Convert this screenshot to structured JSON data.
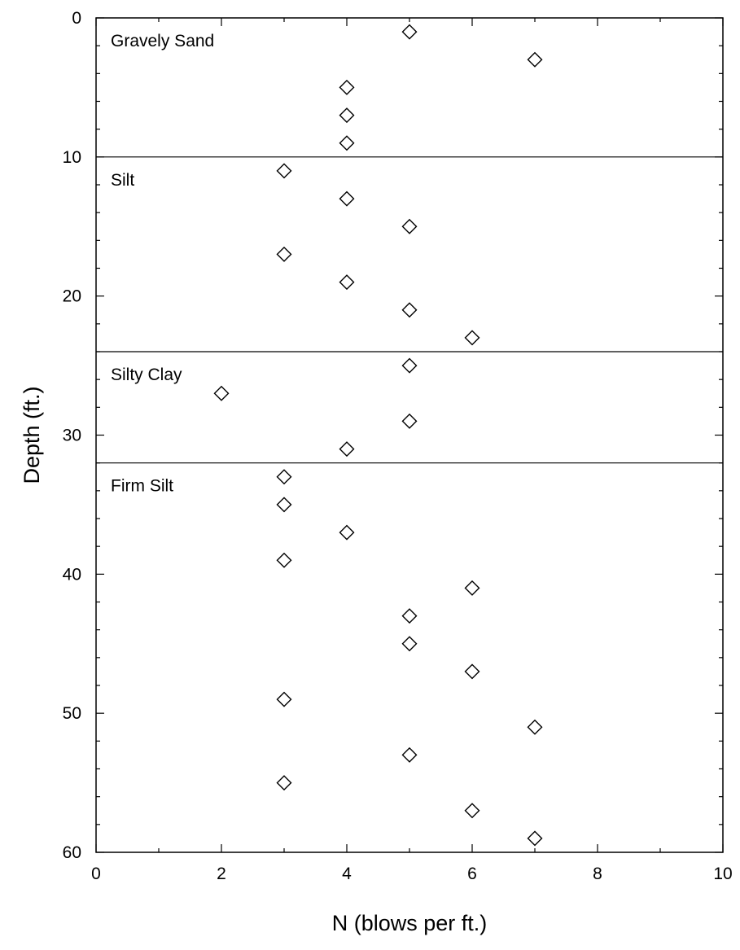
{
  "chart_data": {
    "type": "scatter",
    "title": "",
    "xlabel": "N (blows per ft.)",
    "ylabel": "Depth (ft.)",
    "xlim": [
      0,
      10
    ],
    "ylim": [
      0,
      60
    ],
    "y_inverted": true,
    "grid": false,
    "x_ticks": [
      "0",
      "2",
      "4",
      "6",
      "8",
      "10"
    ],
    "y_ticks": [
      "0",
      "10",
      "20",
      "30",
      "40",
      "50",
      "60"
    ],
    "marker": "open-diamond",
    "series": [
      {
        "points": [
          {
            "x": 5,
            "y": 1
          },
          {
            "x": 7,
            "y": 3
          },
          {
            "x": 4,
            "y": 5
          },
          {
            "x": 4,
            "y": 7
          },
          {
            "x": 4,
            "y": 9
          },
          {
            "x": 3,
            "y": 11
          },
          {
            "x": 4,
            "y": 13
          },
          {
            "x": 5,
            "y": 15
          },
          {
            "x": 3,
            "y": 17
          },
          {
            "x": 4,
            "y": 19
          },
          {
            "x": 5,
            "y": 21
          },
          {
            "x": 6,
            "y": 23
          },
          {
            "x": 5,
            "y": 25
          },
          {
            "x": 2,
            "y": 27
          },
          {
            "x": 5,
            "y": 29
          },
          {
            "x": 4,
            "y": 31
          },
          {
            "x": 3,
            "y": 33
          },
          {
            "x": 3,
            "y": 35
          },
          {
            "x": 4,
            "y": 37
          },
          {
            "x": 3,
            "y": 39
          },
          {
            "x": 6,
            "y": 41
          },
          {
            "x": 5,
            "y": 43
          },
          {
            "x": 5,
            "y": 45
          },
          {
            "x": 6,
            "y": 47
          },
          {
            "x": 3,
            "y": 49
          },
          {
            "x": 7,
            "y": 51
          },
          {
            "x": 5,
            "y": 53
          },
          {
            "x": 3,
            "y": 55
          },
          {
            "x": 6,
            "y": 57
          },
          {
            "x": 7,
            "y": 59
          }
        ]
      }
    ],
    "layer_boundaries": [
      10,
      24,
      32
    ],
    "layers": [
      {
        "label": "Gravely Sand",
        "top": 0
      },
      {
        "label": "Silt",
        "top": 10
      },
      {
        "label": "Silty Clay",
        "top": 24
      },
      {
        "label": "Firm Silt",
        "top": 32
      }
    ]
  }
}
